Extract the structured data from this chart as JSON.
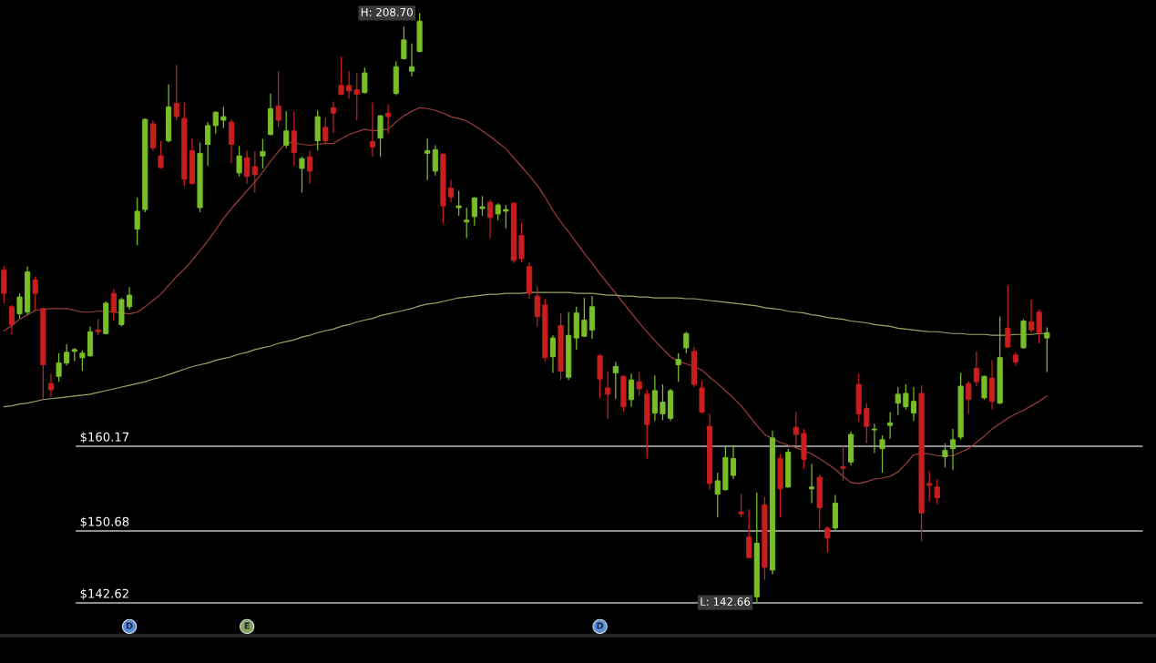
{
  "chart_data": {
    "type": "candlestick",
    "categories": [
      null,
      null,
      null,
      null,
      null,
      null,
      null,
      null,
      null,
      null,
      null,
      null,
      null,
      null,
      null,
      null,
      null,
      null,
      null,
      null,
      null,
      null,
      null,
      null,
      null,
      null,
      null,
      null,
      null,
      null,
      null,
      null,
      null,
      null,
      null,
      null,
      null,
      null,
      null,
      null,
      null,
      null,
      null,
      null,
      null,
      null,
      null,
      null,
      null,
      null,
      null,
      null,
      null,
      null,
      null,
      null,
      null,
      null,
      null,
      null,
      null,
      null,
      null,
      null,
      null,
      null,
      null,
      null,
      null,
      null,
      null,
      null,
      null,
      null,
      null,
      null,
      null,
      null,
      null,
      null,
      null,
      null,
      null,
      null,
      null,
      null,
      null,
      null,
      null,
      null,
      null,
      null,
      null,
      null,
      null,
      null,
      null,
      null,
      null,
      null,
      null,
      null,
      null,
      null,
      null,
      null,
      null,
      null,
      null,
      null,
      null,
      null,
      null,
      null,
      null,
      null,
      null,
      null,
      null,
      null,
      null,
      null,
      null,
      null,
      null,
      null,
      null,
      null,
      null,
      null,
      null,
      null,
      null,
      null
    ],
    "ohlc": [
      [
        179.9,
        180.4,
        176.2,
        177.3
      ],
      [
        175.8,
        176.0,
        172.7,
        173.8
      ],
      [
        175.0,
        177.3,
        174.5,
        176.9
      ],
      [
        175.2,
        180.3,
        174.9,
        179.7
      ],
      [
        178.8,
        179.2,
        175.3,
        177.3
      ],
      [
        175.6,
        175.7,
        165.5,
        169.3
      ],
      [
        167.2,
        168.3,
        165.7,
        166.5
      ],
      [
        168.0,
        170.6,
        167.4,
        169.5
      ],
      [
        169.5,
        171.6,
        169.2,
        170.7
      ],
      [
        170.8,
        171.2,
        169.7,
        171.0
      ],
      [
        170.1,
        170.9,
        168.6,
        170.6
      ],
      [
        170.3,
        173.6,
        170.2,
        173.0
      ],
      [
        173.2,
        174.4,
        172.6,
        173.0
      ],
      [
        172.8,
        176.4,
        172.7,
        176.2
      ],
      [
        177.3,
        177.8,
        174.2,
        175.2
      ],
      [
        173.8,
        176.8,
        173.6,
        176.6
      ],
      [
        175.8,
        178.0,
        175.5,
        177.1
      ],
      [
        184.5,
        188.0,
        182.7,
        186.5
      ],
      [
        186.7,
        196.9,
        186.4,
        196.8
      ],
      [
        196.3,
        196.7,
        193.3,
        193.6
      ],
      [
        192.7,
        194.4,
        191.3,
        191.4
      ],
      [
        194.4,
        200.7,
        194.2,
        198.2
      ],
      [
        198.6,
        202.9,
        196.7,
        197.1
      ],
      [
        196.9,
        198.7,
        189.3,
        190.1
      ],
      [
        193.3,
        194.7,
        189.5,
        189.6
      ],
      [
        186.9,
        194.2,
        186.4,
        193.0
      ],
      [
        194.0,
        196.5,
        191.6,
        196.1
      ],
      [
        196.1,
        197.7,
        195.2,
        197.6
      ],
      [
        196.7,
        198.2,
        195.8,
        197.1
      ],
      [
        196.5,
        196.8,
        191.9,
        194.0
      ],
      [
        190.8,
        193.8,
        190.4,
        192.7
      ],
      [
        192.5,
        193.3,
        189.6,
        190.4
      ],
      [
        191.5,
        193.2,
        188.6,
        190.6
      ],
      [
        192.7,
        194.6,
        191.3,
        193.2
      ],
      [
        195.1,
        199.7,
        195.0,
        198.0
      ],
      [
        198.3,
        202.2,
        195.9,
        196.7
      ],
      [
        193.9,
        197.7,
        193.6,
        195.5
      ],
      [
        195.5,
        197.7,
        191.6,
        193.1
      ],
      [
        191.3,
        192.6,
        188.6,
        192.4
      ],
      [
        192.6,
        193.3,
        189.6,
        191.0
      ],
      [
        194.4,
        197.8,
        193.3,
        197.1
      ],
      [
        195.9,
        197.0,
        194.0,
        194.4
      ],
      [
        198.1,
        198.8,
        195.3,
        197.5
      ],
      [
        200.6,
        203.8,
        199.5,
        199.6
      ],
      [
        200.6,
        202.2,
        199.1,
        200.0
      ],
      [
        200.1,
        202.0,
        196.7,
        199.6
      ],
      [
        199.8,
        202.6,
        199.7,
        202.0
      ],
      [
        194.3,
        198.7,
        192.6,
        193.7
      ],
      [
        194.7,
        197.3,
        192.6,
        197.2
      ],
      [
        197.5,
        198.5,
        195.2,
        197.1
      ],
      [
        199.7,
        203.3,
        199.5,
        202.7
      ],
      [
        203.6,
        207.2,
        203.5,
        205.7
      ],
      [
        202.2,
        205.3,
        201.6,
        202.7
      ],
      [
        204.4,
        208.7,
        204.3,
        207.8
      ],
      [
        193.0,
        194.7,
        190.0,
        193.3
      ],
      [
        191.0,
        193.9,
        190.5,
        193.4
      ],
      [
        192.9,
        193.0,
        185.1,
        187.1
      ],
      [
        189.1,
        190.0,
        187.5,
        188.1
      ],
      [
        186.9,
        188.8,
        186.0,
        187.1
      ],
      [
        185.3,
        186.9,
        183.5,
        185.5
      ],
      [
        185.9,
        188.1,
        184.9,
        188.0
      ],
      [
        186.8,
        188.2,
        186.0,
        187.0
      ],
      [
        187.5,
        187.8,
        183.5,
        185.8
      ],
      [
        186.2,
        187.4,
        185.5,
        187.2
      ],
      [
        186.5,
        187.2,
        184.6,
        186.7
      ],
      [
        187.4,
        187.5,
        180.7,
        181.0
      ],
      [
        183.8,
        185.2,
        180.8,
        181.2
      ],
      [
        180.3,
        180.8,
        176.7,
        177.3
      ],
      [
        177.0,
        178.1,
        173.6,
        174.7
      ],
      [
        176.0,
        176.7,
        169.7,
        170.1
      ],
      [
        170.2,
        172.6,
        168.4,
        172.3
      ],
      [
        173.7,
        175.1,
        167.6,
        168.6
      ],
      [
        167.9,
        175.2,
        167.6,
        172.6
      ],
      [
        172.3,
        175.8,
        171.0,
        175.1
      ],
      [
        172.5,
        176.8,
        172.4,
        174.3
      ],
      [
        173.2,
        177.0,
        172.2,
        175.8
      ],
      [
        170.3,
        170.5,
        165.6,
        167.7
      ],
      [
        166.7,
        168.6,
        163.2,
        166.0
      ],
      [
        168.4,
        169.6,
        165.5,
        169.1
      ],
      [
        168.0,
        168.1,
        164.0,
        164.6
      ],
      [
        165.4,
        168.3,
        164.6,
        167.6
      ],
      [
        167.4,
        168.5,
        165.8,
        166.6
      ],
      [
        166.0,
        166.5,
        158.8,
        162.6
      ],
      [
        163.9,
        168.1,
        163.0,
        166.4
      ],
      [
        163.8,
        167.1,
        163.1,
        165.1
      ],
      [
        163.3,
        166.6,
        163.0,
        166.4
      ],
      [
        169.3,
        170.6,
        167.4,
        169.9
      ],
      [
        171.2,
        173.0,
        170.6,
        172.8
      ],
      [
        170.8,
        171.3,
        166.8,
        167.1
      ],
      [
        166.7,
        167.5,
        163.8,
        164.0
      ],
      [
        162.4,
        163.8,
        155.3,
        156.0
      ],
      [
        154.8,
        157.2,
        152.2,
        156.3
      ],
      [
        155.3,
        160.2,
        155.2,
        158.9
      ],
      [
        156.9,
        160.3,
        156.5,
        158.8
      ],
      [
        152.8,
        154.8,
        152.2,
        152.6
      ],
      [
        150.0,
        153.1,
        147.6,
        147.7
      ],
      [
        143.3,
        155.0,
        142.66,
        149.3
      ],
      [
        153.6,
        154.5,
        145.2,
        146.6
      ],
      [
        146.3,
        161.9,
        145.8,
        161.1
      ],
      [
        158.8,
        159.3,
        152.2,
        155.4
      ],
      [
        155.6,
        159.9,
        155.5,
        159.5
      ],
      [
        162.3,
        164.0,
        160.3,
        161.5
      ],
      [
        161.6,
        162.1,
        157.6,
        158.7
      ],
      [
        155.4,
        158.2,
        153.8,
        155.6
      ],
      [
        156.7,
        157.0,
        150.9,
        153.3
      ],
      [
        151.0,
        151.2,
        148.3,
        149.9
      ],
      [
        151.0,
        154.7,
        150.8,
        153.8
      ],
      [
        157.9,
        160.2,
        156.3,
        157.7
      ],
      [
        158.4,
        161.8,
        158.0,
        161.5
      ],
      [
        167.1,
        168.3,
        162.9,
        163.8
      ],
      [
        164.4,
        165.0,
        160.5,
        162.4
      ],
      [
        162.0,
        162.7,
        159.4,
        162.1
      ],
      [
        159.9,
        161.4,
        157.2,
        160.9
      ],
      [
        162.5,
        164.0,
        161.0,
        162.8
      ],
      [
        165.0,
        166.8,
        163.7,
        166.0
      ],
      [
        164.6,
        167.1,
        164.3,
        166.1
      ],
      [
        163.9,
        166.8,
        163.0,
        165.2
      ],
      [
        166.1,
        167.0,
        149.5,
        152.7
      ],
      [
        156.0,
        157.4,
        154.0,
        155.8
      ],
      [
        155.6,
        156.5,
        153.7,
        154.4
      ],
      [
        159.0,
        160.5,
        157.8,
        159.7
      ],
      [
        159.9,
        162.1,
        157.5,
        160.9
      ],
      [
        161.2,
        168.4,
        160.9,
        166.9
      ],
      [
        167.2,
        167.5,
        163.8,
        165.4
      ],
      [
        168.9,
        170.8,
        166.9,
        167.4
      ],
      [
        165.6,
        168.1,
        165.4,
        168.0
      ],
      [
        167.8,
        169.8,
        164.3,
        165.2
      ],
      [
        165.0,
        174.7,
        164.9,
        170.1
      ],
      [
        173.4,
        178.2,
        171.2,
        171.3
      ],
      [
        170.4,
        170.7,
        169.2,
        169.6
      ],
      [
        171.2,
        174.4,
        171.1,
        174.2
      ],
      [
        174.1,
        176.6,
        172.9,
        173.2
      ],
      [
        175.2,
        175.5,
        171.7,
        172.9
      ],
      [
        172.3,
        173.5,
        168.5,
        172.9
      ]
    ],
    "colors": [
      "#c81e1e",
      "#c81e1e",
      "#78be28",
      "#78be28",
      "#c81e1e",
      "#c81e1e",
      "#c81e1e",
      "#78be28",
      "#78be28",
      "#78be28",
      "#78be28",
      "#78be28",
      "#c81e1e",
      "#78be28",
      "#c81e1e",
      "#78be28",
      "#78be28",
      "#78be28",
      "#78be28",
      "#c81e1e",
      "#c81e1e",
      "#78be28",
      "#c81e1e",
      "#c81e1e",
      "#c81e1e",
      "#78be28",
      "#78be28",
      "#78be28",
      "#78be28",
      "#c81e1e",
      "#78be28",
      "#c81e1e",
      "#c81e1e",
      "#78be28",
      "#78be28",
      "#c81e1e",
      "#78be28",
      "#c81e1e",
      "#78be28",
      "#c81e1e",
      "#78be28",
      "#c81e1e",
      "#c81e1e",
      "#c81e1e",
      "#c81e1e",
      "#c81e1e",
      "#78be28",
      "#c81e1e",
      "#78be28",
      "#c81e1e",
      "#78be28",
      "#78be28",
      "#78be28",
      "#78be28",
      "#78be28",
      "#78be28",
      "#c81e1e",
      "#c81e1e",
      "#78be28",
      "#78be28",
      "#78be28",
      "#78be28",
      "#c81e1e",
      "#78be28",
      "#78be28",
      "#c81e1e",
      "#c81e1e",
      "#c81e1e",
      "#c81e1e",
      "#c81e1e",
      "#78be28",
      "#c81e1e",
      "#78be28",
      "#78be28",
      "#78be28",
      "#78be28",
      "#c81e1e",
      "#c81e1e",
      "#78be28",
      "#c81e1e",
      "#78be28",
      "#c81e1e",
      "#c81e1e",
      "#78be28",
      "#78be28",
      "#78be28",
      "#78be28",
      "#78be28",
      "#c81e1e",
      "#c81e1e",
      "#c81e1e",
      "#78be28",
      "#78be28",
      "#78be28",
      "#c81e1e",
      "#c81e1e",
      "#78be28",
      "#c81e1e",
      "#78be28",
      "#c81e1e",
      "#78be28",
      "#c81e1e",
      "#c81e1e",
      "#78be28",
      "#c81e1e",
      "#c81e1e",
      "#78be28",
      "#c81e1e",
      "#78be28",
      "#c81e1e",
      "#c81e1e",
      "#78be28",
      "#78be28",
      "#78be28",
      "#78be28",
      "#78be28",
      "#78be28",
      "#c81e1e",
      "#c81e1e",
      "#c81e1e",
      "#78be28",
      "#78be28",
      "#78be28",
      "#c81e1e",
      "#c81e1e",
      "#78be28",
      "#c81e1e",
      "#78be28",
      "#c81e1e",
      "#c81e1e",
      "#78be28",
      "#c81e1e",
      "#c81e1e",
      "#78be28"
    ],
    "series": [
      {
        "type": "line",
        "color": "#a0403a",
        "values": [
          173.1,
          173.7,
          174.4,
          174.9,
          175.4,
          175.5,
          175.6,
          175.6,
          175.6,
          175.4,
          175.2,
          175.2,
          175.3,
          175.3,
          175.2,
          175.1,
          175.0,
          175.2,
          175.8,
          176.5,
          177.2,
          178.2,
          179.2,
          180.0,
          181.0,
          182.1,
          183.2,
          184.4,
          185.7,
          186.8,
          187.8,
          188.8,
          189.8,
          190.9,
          192.1,
          193.2,
          194.2,
          194.2,
          194.0,
          193.9,
          194.0,
          194.1,
          194.1,
          194.6,
          195.1,
          195.4,
          195.7,
          195.5,
          195.6,
          195.7,
          196.5,
          197.2,
          197.7,
          198.1,
          198.0,
          197.8,
          197.5,
          197.1,
          196.9,
          196.6,
          196.1,
          195.5,
          194.9,
          194.2,
          193.5,
          192.5,
          191.5,
          190.5,
          189.4,
          188.1,
          186.6,
          185.3,
          184.2,
          183.0,
          181.8,
          180.7,
          179.5,
          178.4,
          177.3,
          176.2,
          175.1,
          174.0,
          173.0,
          172.0,
          171.1,
          170.2,
          169.7,
          169.4,
          169.1,
          168.7,
          167.9,
          167.2,
          166.4,
          165.6,
          164.7,
          163.6,
          162.5,
          161.5,
          161.0,
          160.6,
          160.3,
          160.0,
          159.7,
          159.3,
          158.8,
          158.2,
          157.6,
          156.8,
          156.1,
          156.0,
          156.2,
          156.5,
          156.6,
          156.8,
          157.3,
          158.2,
          159.2,
          159.4,
          159.3,
          159.1,
          159.1,
          159.1,
          159.5,
          159.9,
          160.6,
          161.3,
          162.1,
          162.7,
          163.3,
          163.8,
          164.2,
          164.7,
          165.2,
          165.8
        ]
      },
      {
        "type": "line",
        "color": "#98a664",
        "values": [
          164.6,
          164.7,
          164.9,
          165.0,
          165.2,
          165.4,
          165.5,
          165.6,
          165.7,
          165.8,
          165.9,
          166.0,
          166.2,
          166.4,
          166.6,
          166.8,
          167.0,
          167.2,
          167.4,
          167.7,
          167.9,
          168.2,
          168.5,
          168.8,
          169.1,
          169.3,
          169.5,
          169.8,
          170.0,
          170.2,
          170.5,
          170.7,
          171.0,
          171.2,
          171.4,
          171.7,
          171.9,
          172.1,
          172.4,
          172.6,
          172.9,
          173.1,
          173.3,
          173.6,
          173.8,
          174.1,
          174.3,
          174.5,
          174.8,
          175.0,
          175.2,
          175.4,
          175.6,
          175.9,
          176.1,
          176.2,
          176.4,
          176.6,
          176.8,
          176.9,
          177.0,
          177.1,
          177.2,
          177.2,
          177.3,
          177.3,
          177.3,
          177.4,
          177.4,
          177.4,
          177.4,
          177.4,
          177.4,
          177.3,
          177.3,
          177.3,
          177.2,
          177.1,
          177.1,
          177.0,
          177.0,
          176.9,
          176.9,
          176.8,
          176.8,
          176.8,
          176.8,
          176.7,
          176.7,
          176.6,
          176.5,
          176.4,
          176.3,
          176.2,
          176.1,
          176.0,
          175.9,
          175.7,
          175.6,
          175.5,
          175.3,
          175.2,
          175.1,
          174.9,
          174.8,
          174.6,
          174.5,
          174.4,
          174.2,
          174.1,
          174.0,
          173.8,
          173.7,
          173.6,
          173.4,
          173.3,
          173.2,
          173.1,
          173.0,
          173.0,
          172.9,
          172.8,
          172.8,
          172.7,
          172.7,
          172.7,
          172.6,
          172.6,
          172.6,
          172.7,
          172.7,
          172.7,
          172.8,
          172.8
        ]
      }
    ],
    "tick_labels": false,
    "ref_lines": [
      {
        "axis": "y",
        "value": 160.17,
        "label": "$160.17",
        "color": "#bdbdbd"
      },
      {
        "axis": "y",
        "value": 150.68,
        "label": "$150.68",
        "color": "#bdbdbd"
      },
      {
        "axis": "y",
        "value": 142.62,
        "label": "$142.62",
        "color": "#bdbdbd"
      }
    ],
    "annotations": [
      "H: 208.70",
      "L: 142.66",
      "D",
      "E",
      "D"
    ]
  }
}
